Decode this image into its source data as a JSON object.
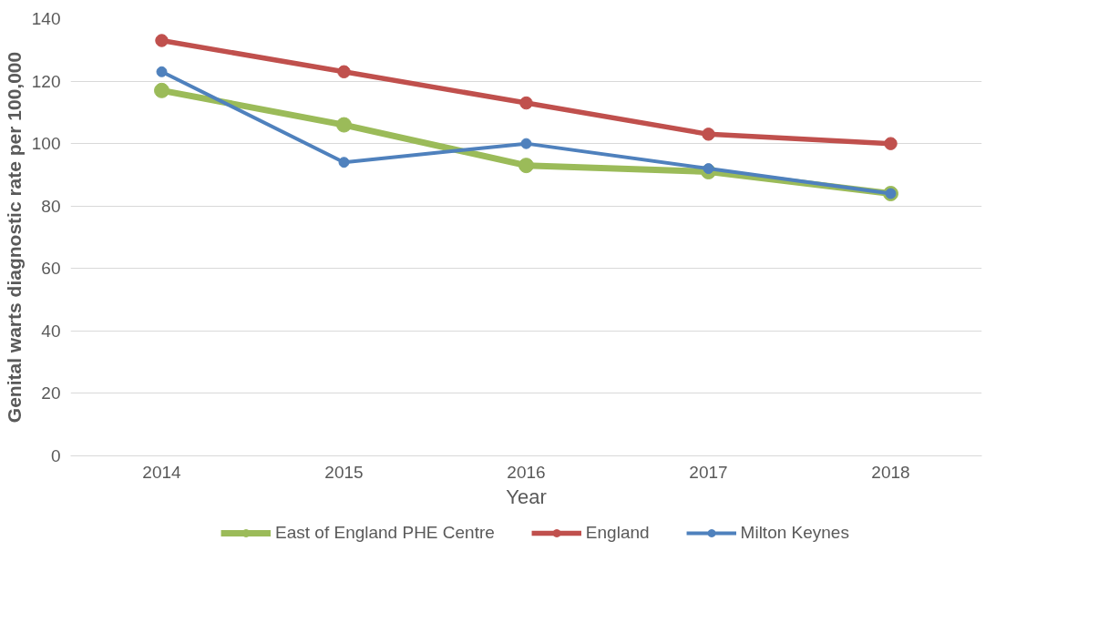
{
  "chart_data": {
    "type": "line",
    "categories": [
      "2014",
      "2015",
      "2016",
      "2017",
      "2018"
    ],
    "xlabel": "Year",
    "ylabel": "Genital warts diagnostic rate per 100,000",
    "ylim": [
      0,
      140
    ],
    "yticks": [
      0,
      20,
      40,
      60,
      80,
      100,
      120,
      140
    ],
    "grid": "y",
    "legend": "bottom",
    "marker": "circle",
    "line_style": "solid",
    "series": [
      {
        "name": "East of England PHE Centre",
        "color": "#9bbb59",
        "values": [
          117,
          106,
          93,
          91,
          84
        ]
      },
      {
        "name": "England",
        "color": "#c0504d",
        "values": [
          133,
          123,
          113,
          103,
          100
        ]
      },
      {
        "name": "Milton Keynes",
        "color": "#4f81bd",
        "values": [
          123,
          94,
          100,
          92,
          84
        ]
      }
    ]
  }
}
